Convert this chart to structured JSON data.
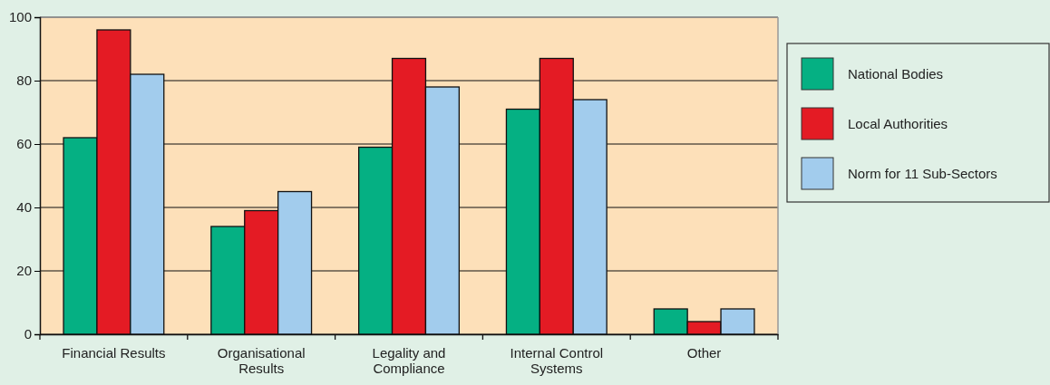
{
  "chart_data": {
    "type": "bar",
    "categories": [
      "Financial Results",
      "Organisational Results",
      "Legality and Compliance",
      "Internal Control Systems",
      "Other"
    ],
    "series": [
      {
        "name": "National Bodies",
        "color": "#05b083",
        "values": [
          62,
          34,
          59,
          71,
          8
        ]
      },
      {
        "name": "Local Authorities",
        "color": "#e41b24",
        "values": [
          96,
          39,
          87,
          87,
          4
        ]
      },
      {
        "name": "Norm for 11 Sub-Sectors",
        "color": "#a2cced",
        "values": [
          82,
          45,
          78,
          74,
          8
        ]
      }
    ],
    "ylim": [
      0,
      100
    ],
    "yticks": [
      0,
      20,
      40,
      60,
      80,
      100
    ],
    "grid": "y",
    "legend": "right"
  }
}
